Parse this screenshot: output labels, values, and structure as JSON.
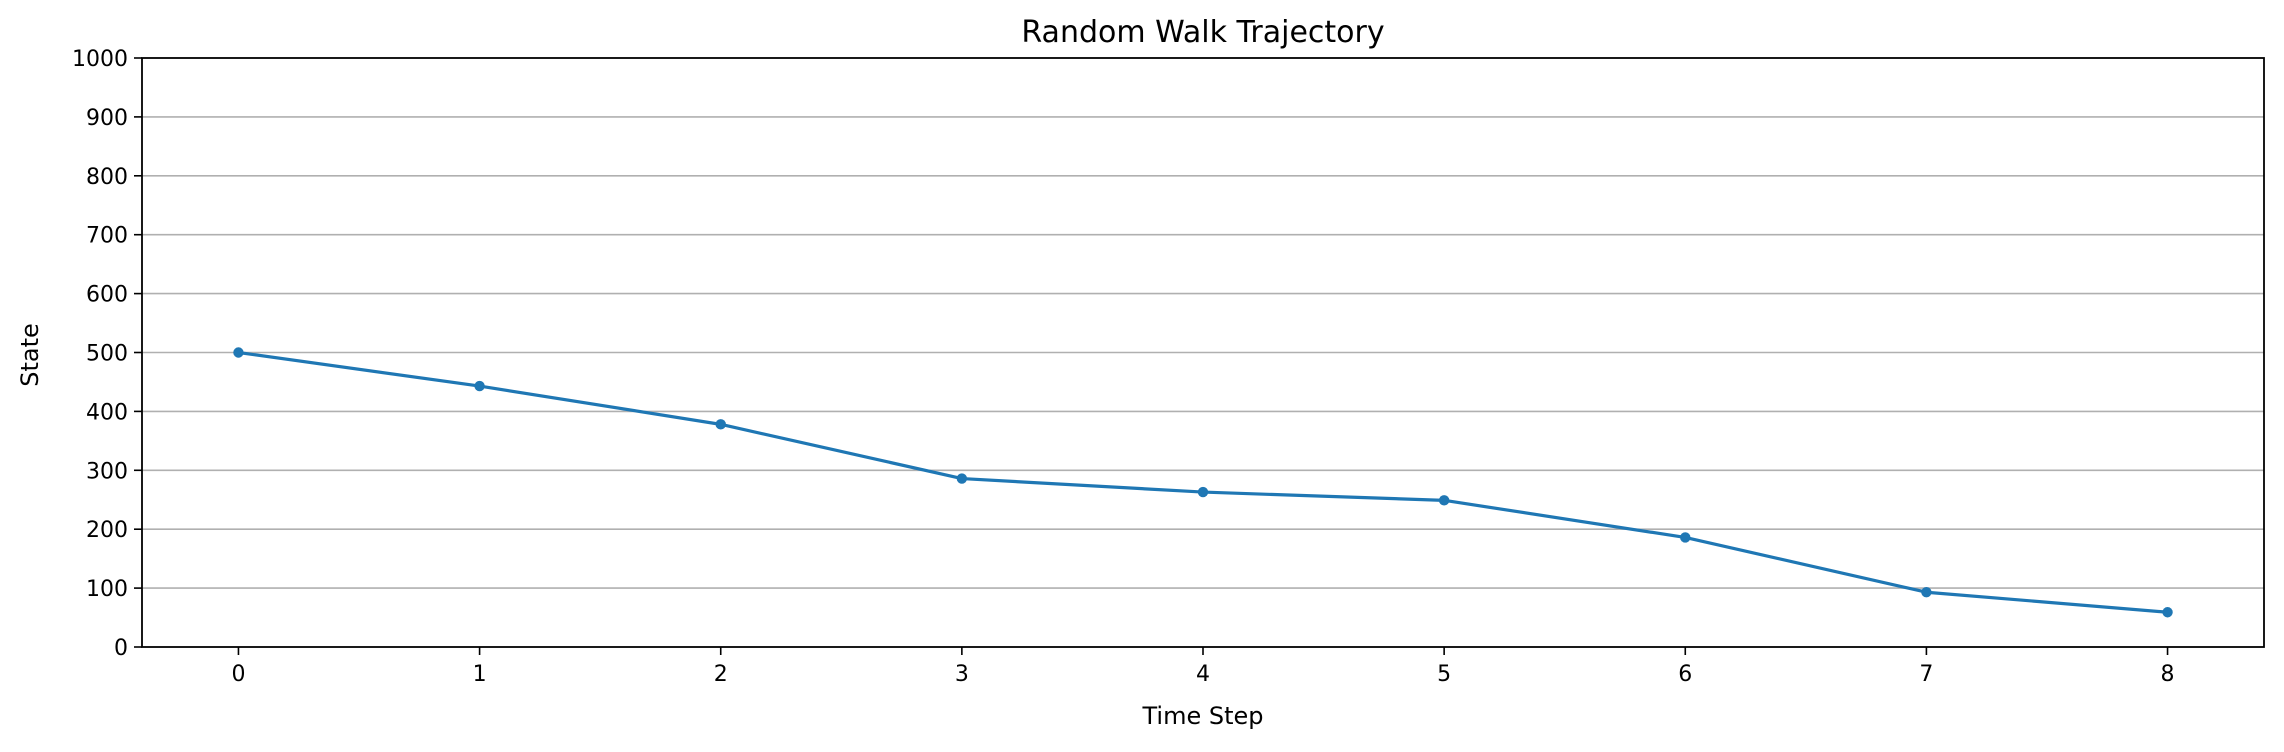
{
  "chart_data": {
    "type": "line",
    "title": "Random Walk Trajectory",
    "xlabel": "Time Step",
    "ylabel": "State",
    "x": [
      0,
      1,
      2,
      3,
      4,
      5,
      6,
      7,
      8
    ],
    "series": [
      {
        "values": [
          500,
          443,
          378,
          286,
          263,
          249,
          186,
          93,
          59
        ],
        "color": "#1f77b4",
        "marker": "circle"
      }
    ],
    "xlim": [
      -0.4,
      8.4
    ],
    "ylim": [
      0,
      1000
    ],
    "xticks": [
      0,
      1,
      2,
      3,
      4,
      5,
      6,
      7,
      8
    ],
    "yticks": [
      0,
      100,
      200,
      300,
      400,
      500,
      600,
      700,
      800,
      900,
      1000
    ],
    "grid": {
      "y": true,
      "x": false
    },
    "legend": "none"
  }
}
